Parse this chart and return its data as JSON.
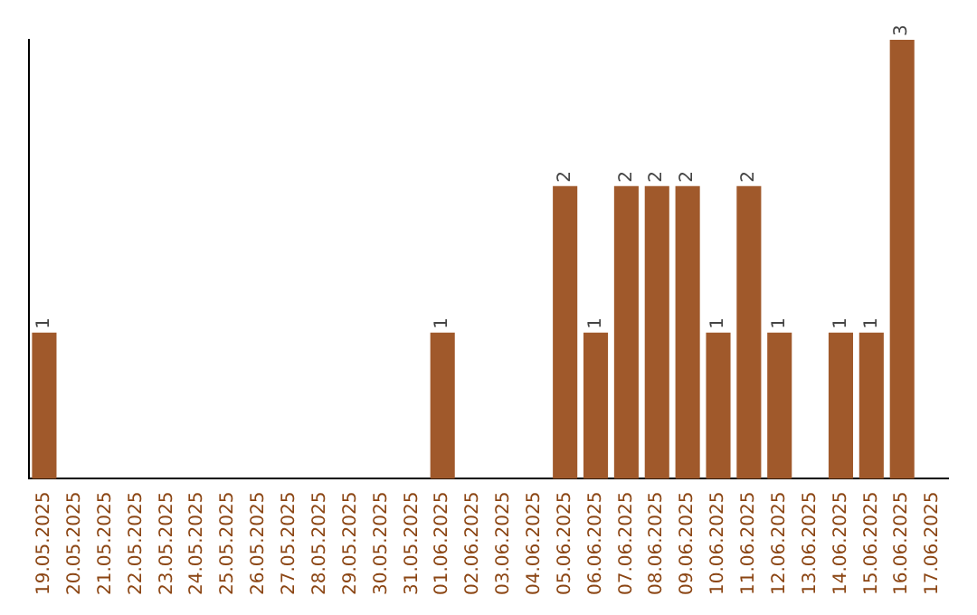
{
  "chart_data": {
    "type": "bar",
    "categories": [
      "19.05.2025",
      "20.05.2025",
      "21.05.2025",
      "22.05.2025",
      "23.05.2025",
      "24.05.2025",
      "25.05.2025",
      "26.05.2025",
      "27.05.2025",
      "28.05.2025",
      "29.05.2025",
      "30.05.2025",
      "31.05.2025",
      "01.06.2025",
      "02.06.2025",
      "03.06.2025",
      "04.06.2025",
      "05.06.2025",
      "06.06.2025",
      "07.06.2025",
      "08.06.2025",
      "09.06.2025",
      "10.06.2025",
      "11.06.2025",
      "12.06.2025",
      "13.06.2025",
      "14.06.2025",
      "15.06.2025",
      "16.06.2025",
      "17.06.2025"
    ],
    "values": [
      1,
      0,
      0,
      0,
      0,
      0,
      0,
      0,
      0,
      0,
      0,
      0,
      0,
      1,
      0,
      0,
      0,
      2,
      1,
      2,
      2,
      2,
      1,
      2,
      1,
      0,
      1,
      1,
      3,
      0
    ],
    "value_labels": [
      "1",
      null,
      null,
      null,
      null,
      null,
      null,
      null,
      null,
      null,
      null,
      null,
      null,
      "1",
      null,
      null,
      null,
      "2",
      "1",
      "2",
      "2",
      "2",
      "1",
      "2",
      "1",
      null,
      "1",
      "1",
      "3",
      null
    ],
    "color": "#a0592b",
    "tick_labels": "x",
    "grid": false,
    "legend": false
  }
}
